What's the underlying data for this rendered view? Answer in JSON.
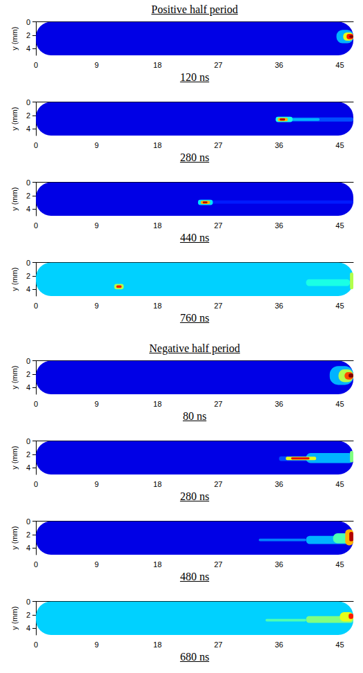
{
  "chart_data": [
    {
      "type": "heatmap",
      "group": "Positive half period",
      "title": "120 ns",
      "ylabel": "y (mm)",
      "xlim": [
        0,
        47
      ],
      "xticks": [
        0,
        9,
        18,
        27,
        36,
        45
      ],
      "ylim": [
        5,
        0
      ],
      "yticks": [
        0,
        2,
        4
      ],
      "color_range": [
        0,
        1
      ],
      "background": 0.1,
      "cells": [
        [
          44.5,
          47,
          1.2,
          3.2,
          0.3
        ],
        [
          45.5,
          47,
          1.6,
          2.8,
          0.6
        ],
        [
          46,
          47,
          1.8,
          2.6,
          0.85
        ],
        [
          46.4,
          47,
          2.0,
          2.4,
          1.0
        ]
      ]
    },
    {
      "type": "heatmap",
      "group": "Positive half period",
      "title": "280 ns",
      "ylabel": "y (mm)",
      "xlim": [
        0,
        47
      ],
      "xticks": [
        0,
        9,
        18,
        27,
        36,
        45
      ],
      "ylim": [
        5,
        0
      ],
      "yticks": [
        0,
        2,
        4
      ],
      "color_range": [
        0,
        1
      ],
      "background": 0.1,
      "cells": [
        [
          37,
          47,
          2.3,
          2.9,
          0.2
        ],
        [
          37,
          42,
          2.4,
          2.8,
          0.3
        ],
        [
          35.5,
          38,
          2.2,
          3.0,
          0.4
        ],
        [
          35.8,
          37.3,
          2.35,
          2.85,
          0.7
        ],
        [
          36.1,
          36.9,
          2.45,
          2.75,
          0.95
        ]
      ]
    },
    {
      "type": "heatmap",
      "group": "Positive half period",
      "title": "440 ns",
      "ylabel": "y (mm)",
      "xlim": [
        0,
        47
      ],
      "xticks": [
        0,
        9,
        18,
        27,
        36,
        45
      ],
      "ylim": [
        5,
        0
      ],
      "yticks": [
        0,
        2,
        4
      ],
      "color_range": [
        0,
        1
      ],
      "background": 0.1,
      "cells": [
        [
          26,
          47,
          2.7,
          3.2,
          0.15
        ],
        [
          24,
          26.2,
          2.6,
          3.4,
          0.35
        ],
        [
          24.4,
          25.8,
          2.75,
          3.25,
          0.7
        ],
        [
          24.7,
          25.4,
          2.85,
          3.15,
          0.95
        ]
      ]
    },
    {
      "type": "heatmap",
      "group": "Positive half period",
      "title": "760 ns",
      "ylabel": "y (mm)",
      "xlim": [
        0,
        47
      ],
      "xticks": [
        0,
        9,
        18,
        27,
        36,
        45
      ],
      "ylim": [
        5,
        0
      ],
      "yticks": [
        0,
        2,
        4
      ],
      "color_range": [
        0,
        1
      ],
      "background": 0.33,
      "cells": [
        [
          40,
          46.5,
          2.5,
          3.5,
          0.4
        ],
        [
          46.5,
          47,
          1.5,
          4.0,
          0.55
        ],
        [
          11.6,
          13,
          3.2,
          4.0,
          0.55
        ],
        [
          11.9,
          12.7,
          3.4,
          3.8,
          0.85
        ]
      ]
    },
    {
      "type": "heatmap",
      "group": "Negative half period",
      "title": "80 ns",
      "ylabel": "y (mm)",
      "xlim": [
        0,
        47
      ],
      "xticks": [
        0,
        9,
        18,
        27,
        36,
        45
      ],
      "ylim": [
        5,
        0
      ],
      "yticks": [
        0,
        2,
        4
      ],
      "color_range": [
        0,
        1
      ],
      "background": 0.1,
      "cells": [
        [
          43.5,
          47,
          0.8,
          3.6,
          0.3
        ],
        [
          44.8,
          47,
          1.3,
          3.2,
          0.55
        ],
        [
          45.7,
          47,
          1.7,
          2.8,
          0.8
        ],
        [
          46.3,
          47,
          1.9,
          2.5,
          1.0
        ]
      ]
    },
    {
      "type": "heatmap",
      "group": "Negative half period",
      "title": "280 ns",
      "ylabel": "y (mm)",
      "xlim": [
        0,
        47
      ],
      "xticks": [
        0,
        9,
        18,
        27,
        36,
        45
      ],
      "ylim": [
        5,
        0
      ],
      "yticks": [
        0,
        2,
        4
      ],
      "color_range": [
        0,
        1
      ],
      "background": 0.1,
      "cells": [
        [
          36,
          47,
          2.3,
          3.0,
          0.2
        ],
        [
          40,
          47,
          1.8,
          3.3,
          0.3
        ],
        [
          37,
          41.5,
          2.35,
          2.85,
          0.6
        ],
        [
          37.8,
          40.5,
          2.45,
          2.75,
          0.9
        ],
        [
          46.5,
          47,
          1.5,
          3.2,
          0.5
        ]
      ]
    },
    {
      "type": "heatmap",
      "group": "Negative half period",
      "title": "480 ns",
      "ylabel": "y (mm)",
      "xlim": [
        0,
        47
      ],
      "xticks": [
        0,
        9,
        18,
        27,
        36,
        45
      ],
      "ylim": [
        5,
        0
      ],
      "yticks": [
        0,
        2,
        4
      ],
      "color_range": [
        0,
        1
      ],
      "background": 0.1,
      "cells": [
        [
          33,
          40,
          2.6,
          3.0,
          0.25
        ],
        [
          40,
          47,
          2.2,
          3.4,
          0.3
        ],
        [
          44,
          47,
          1.8,
          3.3,
          0.45
        ],
        [
          45.8,
          47,
          1.2,
          3.6,
          0.7
        ],
        [
          46.4,
          47,
          1.6,
          3.0,
          0.95
        ]
      ]
    },
    {
      "type": "heatmap",
      "group": "Negative half period",
      "title": "680 ns",
      "ylabel": "y (mm)",
      "xlim": [
        0,
        47
      ],
      "xticks": [
        0,
        9,
        18,
        27,
        36,
        45
      ],
      "ylim": [
        5,
        0
      ],
      "yticks": [
        0,
        2,
        4
      ],
      "color_range": [
        0,
        1
      ],
      "background": 0.33,
      "cells": [
        [
          34,
          40,
          2.6,
          3.0,
          0.45
        ],
        [
          40,
          47,
          2.2,
          3.2,
          0.5
        ],
        [
          45,
          47,
          1.6,
          3.0,
          0.6
        ],
        [
          46.3,
          47,
          1.8,
          2.6,
          0.85
        ]
      ]
    }
  ]
}
